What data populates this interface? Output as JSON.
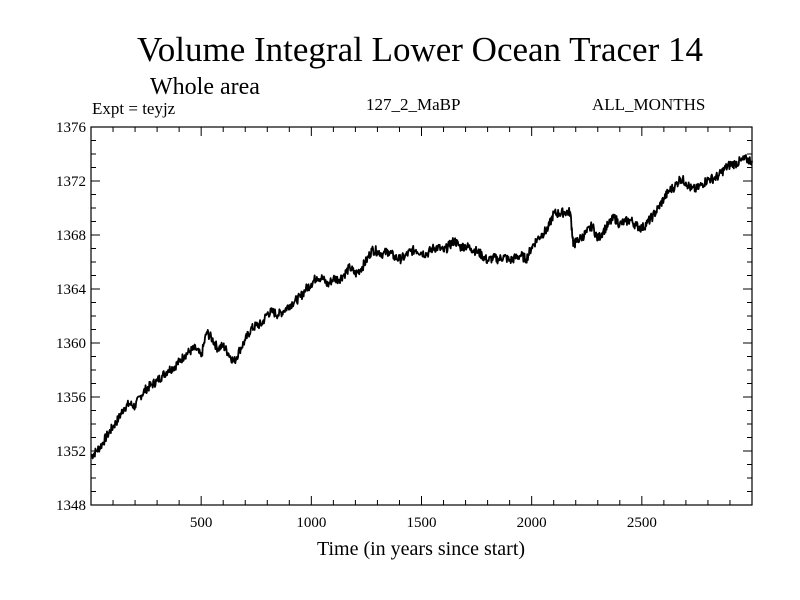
{
  "chart_data": {
    "type": "line",
    "title": "Volume Integral Lower Ocean Tracer 14",
    "subtitle": "Whole area",
    "experiment": "Expt = teyjz",
    "run_label": "127_2_MaBP",
    "period": "ALL_MONTHS",
    "xlabel": "Time (in years since start)",
    "ylabel": "",
    "xlim": [
      0,
      3000
    ],
    "ylim": [
      1348,
      1376
    ],
    "x_ticks": [
      500,
      1000,
      1500,
      2000,
      2500
    ],
    "y_ticks": [
      1348,
      1352,
      1356,
      1360,
      1364,
      1368,
      1372,
      1376
    ],
    "series": [
      {
        "name": "Volume integral",
        "color": "#000000",
        "points": [
          [
            0,
            1351.6
          ],
          [
            25,
            1352.0
          ],
          [
            50,
            1352.5
          ],
          [
            75,
            1353.2
          ],
          [
            100,
            1353.8
          ],
          [
            125,
            1354.4
          ],
          [
            150,
            1355.2
          ],
          [
            175,
            1355.5
          ],
          [
            200,
            1355.3
          ],
          [
            225,
            1356.1
          ],
          [
            250,
            1356.6
          ],
          [
            275,
            1356.9
          ],
          [
            300,
            1357.2
          ],
          [
            325,
            1357.6
          ],
          [
            350,
            1358.0
          ],
          [
            375,
            1358.2
          ],
          [
            400,
            1358.6
          ],
          [
            425,
            1359.1
          ],
          [
            450,
            1359.4
          ],
          [
            475,
            1359.6
          ],
          [
            500,
            1359.0
          ],
          [
            525,
            1360.8
          ],
          [
            550,
            1360.3
          ],
          [
            575,
            1359.6
          ],
          [
            600,
            1359.8
          ],
          [
            625,
            1359.2
          ],
          [
            650,
            1358.6
          ],
          [
            675,
            1359.5
          ],
          [
            700,
            1360.2
          ],
          [
            725,
            1361.0
          ],
          [
            750,
            1361.3
          ],
          [
            775,
            1361.4
          ],
          [
            800,
            1362.2
          ],
          [
            825,
            1362.3
          ],
          [
            850,
            1362.1
          ],
          [
            875,
            1362.4
          ],
          [
            900,
            1362.8
          ],
          [
            925,
            1363.1
          ],
          [
            950,
            1363.4
          ],
          [
            975,
            1364.0
          ],
          [
            1000,
            1364.4
          ],
          [
            1025,
            1364.9
          ],
          [
            1050,
            1364.8
          ],
          [
            1075,
            1364.3
          ],
          [
            1100,
            1364.8
          ],
          [
            1125,
            1364.7
          ],
          [
            1150,
            1365.1
          ],
          [
            1175,
            1365.6
          ],
          [
            1200,
            1365.1
          ],
          [
            1225,
            1365.5
          ],
          [
            1250,
            1366.1
          ],
          [
            1275,
            1366.9
          ],
          [
            1300,
            1366.8
          ],
          [
            1325,
            1366.6
          ],
          [
            1350,
            1366.8
          ],
          [
            1375,
            1366.4
          ],
          [
            1400,
            1366.2
          ],
          [
            1425,
            1366.4
          ],
          [
            1450,
            1366.8
          ],
          [
            1475,
            1366.9
          ],
          [
            1500,
            1366.7
          ],
          [
            1525,
            1366.6
          ],
          [
            1550,
            1367.0
          ],
          [
            1575,
            1367.1
          ],
          [
            1600,
            1366.8
          ],
          [
            1625,
            1367.2
          ],
          [
            1650,
            1367.6
          ],
          [
            1675,
            1367.1
          ],
          [
            1700,
            1367.2
          ],
          [
            1725,
            1367.0
          ],
          [
            1750,
            1366.8
          ],
          [
            1775,
            1366.5
          ],
          [
            1800,
            1366.1
          ],
          [
            1825,
            1366.3
          ],
          [
            1850,
            1366.2
          ],
          [
            1875,
            1366.4
          ],
          [
            1900,
            1366.1
          ],
          [
            1925,
            1366.3
          ],
          [
            1950,
            1366.5
          ],
          [
            1975,
            1366.2
          ],
          [
            2000,
            1367.1
          ],
          [
            2025,
            1367.7
          ],
          [
            2050,
            1368.1
          ],
          [
            2075,
            1368.5
          ],
          [
            2100,
            1369.6
          ],
          [
            2125,
            1369.6
          ],
          [
            2150,
            1369.7
          ],
          [
            2175,
            1369.7
          ],
          [
            2190,
            1367.2
          ],
          [
            2200,
            1367.5
          ],
          [
            2225,
            1367.8
          ],
          [
            2250,
            1368.2
          ],
          [
            2275,
            1368.7
          ],
          [
            2300,
            1367.7
          ],
          [
            2325,
            1368.3
          ],
          [
            2350,
            1368.8
          ],
          [
            2375,
            1369.3
          ],
          [
            2400,
            1368.8
          ],
          [
            2425,
            1369.0
          ],
          [
            2450,
            1369.1
          ],
          [
            2475,
            1368.7
          ],
          [
            2500,
            1368.5
          ],
          [
            2525,
            1368.9
          ],
          [
            2550,
            1369.4
          ],
          [
            2575,
            1370.0
          ],
          [
            2600,
            1370.7
          ],
          [
            2625,
            1371.3
          ],
          [
            2650,
            1371.6
          ],
          [
            2675,
            1372.2
          ],
          [
            2700,
            1371.9
          ],
          [
            2725,
            1371.4
          ],
          [
            2750,
            1371.4
          ],
          [
            2775,
            1371.8
          ],
          [
            2800,
            1372.1
          ],
          [
            2825,
            1372.2
          ],
          [
            2850,
            1372.4
          ],
          [
            2875,
            1372.9
          ],
          [
            2900,
            1373.2
          ],
          [
            2925,
            1373.3
          ],
          [
            2950,
            1373.5
          ],
          [
            2975,
            1373.6
          ],
          [
            3000,
            1373.5
          ]
        ]
      }
    ]
  }
}
